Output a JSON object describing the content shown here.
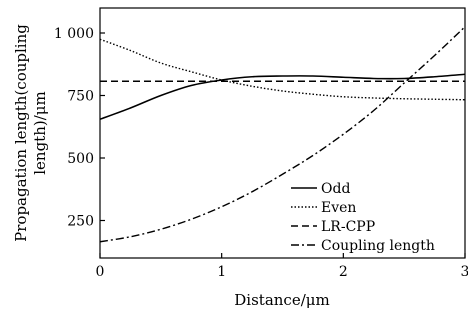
{
  "chart_data": {
    "type": "line",
    "title": "",
    "xlabel": "Distance/μm",
    "ylabel": "Propagation length(coupling length)/μm",
    "ylabel_lines": [
      "Propagation length(coupling",
      "length)/μm"
    ],
    "xlim": [
      0,
      3
    ],
    "ylim": [
      100,
      1100
    ],
    "x_ticks": [
      0,
      1,
      2,
      3
    ],
    "x_tick_labels": [
      "0",
      "1",
      "2",
      "3"
    ],
    "y_ticks": [
      250,
      500,
      750,
      1000
    ],
    "y_tick_labels": [
      "250",
      "500",
      "750",
      "1 000"
    ],
    "grid": false,
    "legend_position": "lower-right",
    "series": [
      {
        "name": "Odd",
        "style": "solid",
        "color": "#000000",
        "x": [
          0,
          0.25,
          0.5,
          0.75,
          1.0,
          1.25,
          1.5,
          1.75,
          2.0,
          2.25,
          2.5,
          2.75,
          3.0
        ],
        "y": [
          655,
          700,
          750,
          790,
          812,
          825,
          828,
          828,
          823,
          818,
          818,
          825,
          835
        ]
      },
      {
        "name": "Even",
        "style": "dotted",
        "color": "#000000",
        "x": [
          0,
          0.25,
          0.5,
          0.75,
          1.0,
          1.25,
          1.5,
          1.75,
          2.0,
          2.25,
          2.5,
          2.75,
          3.0
        ],
        "y": [
          975,
          930,
          880,
          845,
          812,
          787,
          768,
          755,
          745,
          740,
          737,
          735,
          733
        ]
      },
      {
        "name": "LR-CPP",
        "style": "dashed",
        "color": "#000000",
        "x": [
          0,
          3
        ],
        "y": [
          807,
          807
        ]
      },
      {
        "name": "Coupling  length",
        "style": "dashdot",
        "color": "#000000",
        "x": [
          0,
          0.25,
          0.5,
          0.75,
          1.0,
          1.25,
          1.5,
          1.75,
          2.0,
          2.25,
          2.5,
          2.75,
          3.0
        ],
        "y": [
          165,
          185,
          215,
          255,
          305,
          365,
          435,
          510,
          595,
          690,
          800,
          910,
          1025
        ]
      }
    ]
  }
}
